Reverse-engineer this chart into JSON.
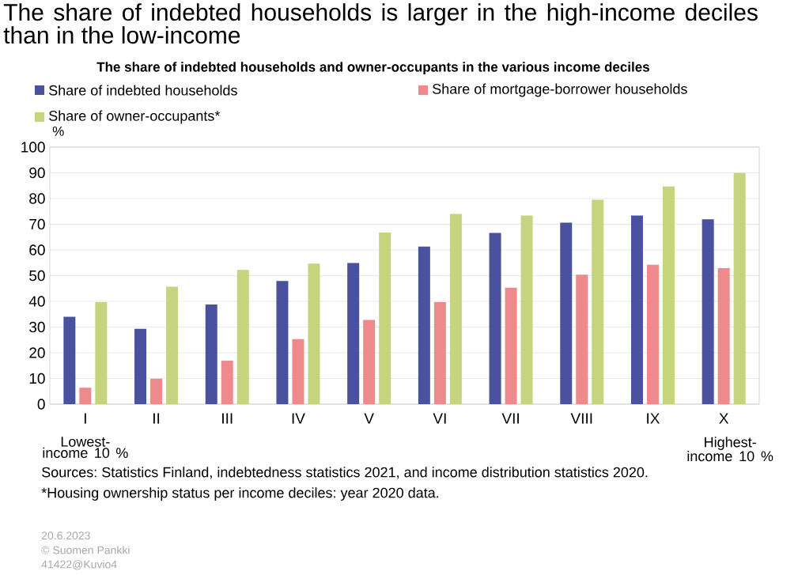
{
  "chart_data": {
    "type": "bar",
    "title": "The share of indebted households is larger in the high-income deciles than in the low-income",
    "subtitle": "The share of indebted households and owner-occupants in the various income deciles",
    "ylabel": "%",
    "categories": [
      "I",
      "II",
      "III",
      "IV",
      "V",
      "VI",
      "VII",
      "VIII",
      "IX",
      "X"
    ],
    "series": [
      {
        "name": "Share of indebted households",
        "color": "#4a52a0",
        "values": [
          34,
          29.3,
          38.8,
          47.9,
          54.9,
          61.3,
          66.6,
          70.6,
          73.4,
          71.9
        ]
      },
      {
        "name": "Share of mortgage-borrower households",
        "color": "#ee8a8c",
        "values": [
          6.4,
          9.9,
          16.9,
          25.3,
          32.8,
          39.7,
          45.3,
          50.4,
          54.2,
          52.9
        ]
      },
      {
        "name": "Share of owner-occupants*",
        "color": "#c6d47e",
        "values": [
          39.7,
          45.7,
          52.2,
          54.7,
          66.8,
          74,
          73.4,
          79.5,
          84.7,
          89.9
        ]
      }
    ],
    "ylim": [
      0,
      100
    ],
    "yticks": [
      0,
      10,
      20,
      30,
      40,
      50,
      60,
      70,
      80,
      90,
      100
    ],
    "grid": "y",
    "legend": "top left",
    "annotations": [
      "Lowest-income 10 %",
      "Highest-income 10 %",
      "Sources: Statistics Finland, indebtedness statistics 2021, and income distribution statistics 2020.",
      "*Housing ownership status per income deciles: year 2020 data.",
      "20.6.2023",
      "© Suomen Pankki",
      "41422@Kuvio4"
    ]
  }
}
